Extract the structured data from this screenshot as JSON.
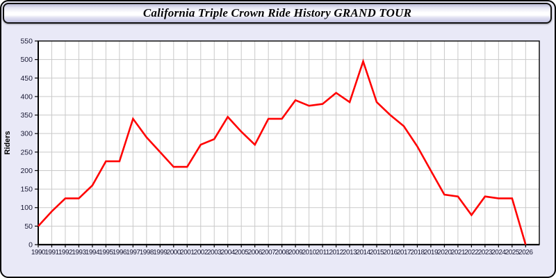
{
  "header": {
    "title": "California Triple Crown Ride History GRAND TOUR"
  },
  "chart_data": {
    "type": "line",
    "title": "California Triple Crown Ride History GRAND TOUR",
    "xlabel": "",
    "ylabel": "Riders",
    "ylim": [
      0,
      550
    ],
    "ytick_step": 50,
    "ytick_labels": [
      "0",
      "50",
      "100",
      "150",
      "200",
      "250",
      "300",
      "350",
      "400",
      "450",
      "500",
      "550"
    ],
    "grid": true,
    "legend_position": "none",
    "series_name": "Riders",
    "x": [
      1990,
      1991,
      1992,
      1993,
      1994,
      1995,
      1996,
      1997,
      1998,
      1999,
      2000,
      2001,
      2002,
      2003,
      2004,
      2005,
      2006,
      2007,
      2008,
      2009,
      2010,
      2011,
      2012,
      2013,
      2014,
      2015,
      2016,
      2017,
      2018,
      2019,
      2020,
      2021,
      2022,
      2023,
      2024,
      2025,
      2026
    ],
    "values": [
      50,
      90,
      125,
      125,
      160,
      225,
      225,
      340,
      290,
      250,
      210,
      210,
      270,
      285,
      345,
      305,
      270,
      340,
      340,
      390,
      375,
      380,
      410,
      385,
      495,
      385,
      350,
      320,
      265,
      200,
      135,
      130,
      80,
      130,
      125,
      125,
      0
    ],
    "colors": {
      "line": "#ff0000",
      "grid": "#c9c9c9",
      "plot_background": "#ffffff",
      "page_background": "#e9e9f7",
      "axis": "#000000",
      "tick_label": "#181833"
    }
  }
}
